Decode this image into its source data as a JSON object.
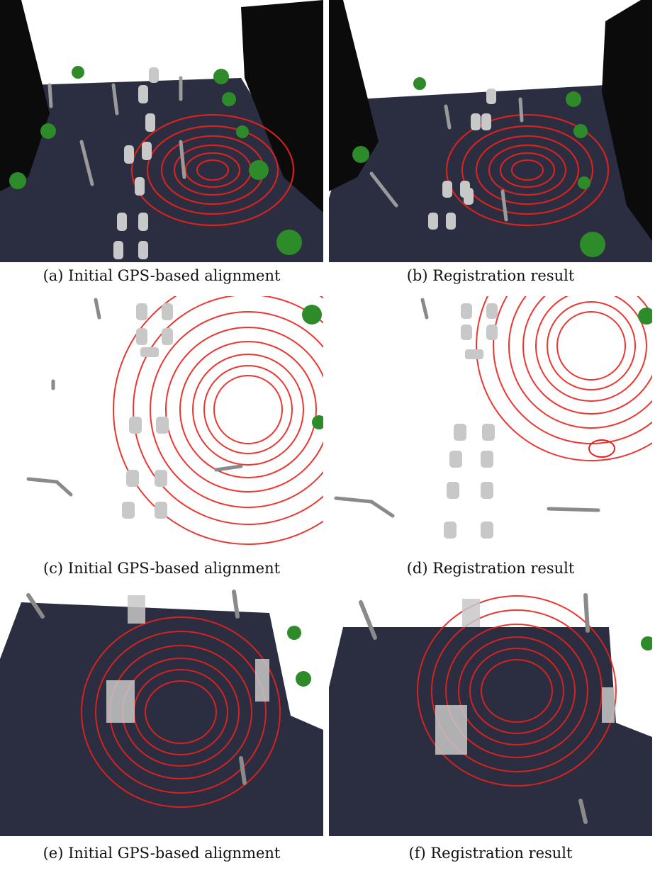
{
  "captions": {
    "a": "(a) Initial GPS-based alignment",
    "b": "(b) Registration result",
    "c": "(c) Initial GPS-based alignment",
    "d": "(d) Registration result",
    "e": "(e) Initial GPS-based alignment",
    "f": "(f) Registration result"
  },
  "colors": {
    "ground": "#2b2d40",
    "lidar_scan": "#e8221c",
    "vegetation": "#2e8b2a",
    "poles_and_cars": "#9a9a9a",
    "buildings": "#0b0b0b"
  }
}
